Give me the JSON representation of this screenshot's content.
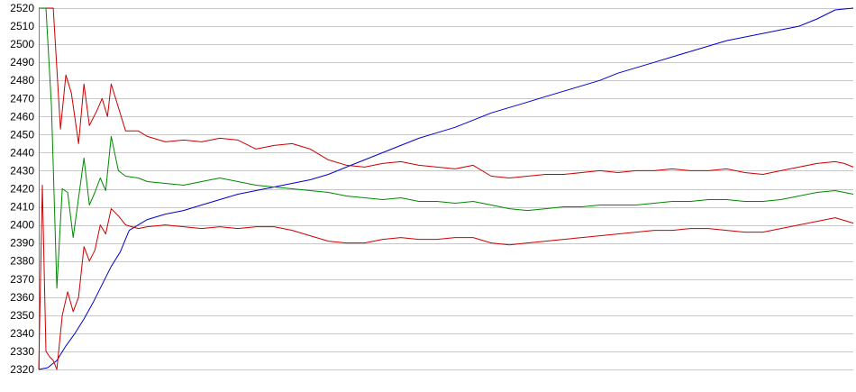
{
  "chart_data": {
    "type": "line",
    "title": "",
    "xlabel": "",
    "ylabel": "",
    "ylim": [
      2320,
      2520
    ],
    "xlim": [
      0,
      450
    ],
    "yticks": [
      2320,
      2330,
      2340,
      2350,
      2360,
      2370,
      2380,
      2390,
      2400,
      2410,
      2420,
      2430,
      2440,
      2450,
      2460,
      2470,
      2480,
      2490,
      2500,
      2510,
      2520
    ],
    "grid": true,
    "legend": "none",
    "series": [
      {
        "color": "#0000cc",
        "points": [
          [
            0,
            2320
          ],
          [
            5,
            2321
          ],
          [
            10,
            2325
          ],
          [
            15,
            2333
          ],
          [
            20,
            2340
          ],
          [
            25,
            2348
          ],
          [
            30,
            2357
          ],
          [
            35,
            2367
          ],
          [
            40,
            2377
          ],
          [
            45,
            2385
          ],
          [
            50,
            2397
          ],
          [
            55,
            2400
          ],
          [
            60,
            2403
          ],
          [
            70,
            2406
          ],
          [
            80,
            2408
          ],
          [
            90,
            2411
          ],
          [
            100,
            2414
          ],
          [
            110,
            2417
          ],
          [
            120,
            2419
          ],
          [
            130,
            2421
          ],
          [
            140,
            2423
          ],
          [
            150,
            2425
          ],
          [
            160,
            2428
          ],
          [
            170,
            2432
          ],
          [
            180,
            2436
          ],
          [
            190,
            2440
          ],
          [
            200,
            2444
          ],
          [
            210,
            2448
          ],
          [
            220,
            2451
          ],
          [
            230,
            2454
          ],
          [
            240,
            2458
          ],
          [
            250,
            2462
          ],
          [
            260,
            2465
          ],
          [
            270,
            2468
          ],
          [
            280,
            2471
          ],
          [
            290,
            2474
          ],
          [
            300,
            2477
          ],
          [
            310,
            2480
          ],
          [
            320,
            2484
          ],
          [
            330,
            2487
          ],
          [
            340,
            2490
          ],
          [
            350,
            2493
          ],
          [
            360,
            2496
          ],
          [
            370,
            2499
          ],
          [
            380,
            2502
          ],
          [
            390,
            2504
          ],
          [
            400,
            2506
          ],
          [
            410,
            2508
          ],
          [
            420,
            2510
          ],
          [
            430,
            2514
          ],
          [
            440,
            2519
          ],
          [
            450,
            2520
          ]
        ]
      },
      {
        "color": "#cc0000",
        "points": [
          [
            0,
            2520
          ],
          [
            5,
            2520
          ],
          [
            8,
            2520
          ],
          [
            12,
            2453
          ],
          [
            15,
            2483
          ],
          [
            18,
            2473
          ],
          [
            22,
            2445
          ],
          [
            25,
            2478
          ],
          [
            28,
            2455
          ],
          [
            32,
            2463
          ],
          [
            35,
            2470
          ],
          [
            38,
            2460
          ],
          [
            40,
            2478
          ],
          [
            44,
            2465
          ],
          [
            48,
            2452
          ],
          [
            55,
            2452
          ],
          [
            60,
            2449
          ],
          [
            70,
            2446
          ],
          [
            80,
            2447
          ],
          [
            90,
            2446
          ],
          [
            100,
            2448
          ],
          [
            110,
            2447
          ],
          [
            120,
            2442
          ],
          [
            130,
            2444
          ],
          [
            140,
            2445
          ],
          [
            150,
            2442
          ],
          [
            160,
            2436
          ],
          [
            170,
            2433
          ],
          [
            180,
            2432
          ],
          [
            190,
            2434
          ],
          [
            200,
            2435
          ],
          [
            210,
            2433
          ],
          [
            220,
            2432
          ],
          [
            230,
            2431
          ],
          [
            240,
            2433
          ],
          [
            250,
            2427
          ],
          [
            260,
            2426
          ],
          [
            270,
            2427
          ],
          [
            280,
            2428
          ],
          [
            290,
            2428
          ],
          [
            300,
            2429
          ],
          [
            310,
            2430
          ],
          [
            320,
            2429
          ],
          [
            330,
            2430
          ],
          [
            340,
            2430
          ],
          [
            350,
            2431
          ],
          [
            360,
            2430
          ],
          [
            370,
            2430
          ],
          [
            380,
            2431
          ],
          [
            390,
            2429
          ],
          [
            400,
            2428
          ],
          [
            410,
            2430
          ],
          [
            420,
            2432
          ],
          [
            430,
            2434
          ],
          [
            440,
            2435
          ],
          [
            445,
            2434
          ],
          [
            450,
            2432
          ]
        ]
      },
      {
        "color": "#008800",
        "points": [
          [
            0,
            2520
          ],
          [
            4,
            2520
          ],
          [
            7,
            2466
          ],
          [
            10,
            2365
          ],
          [
            13,
            2420
          ],
          [
            16,
            2418
          ],
          [
            19,
            2393
          ],
          [
            22,
            2415
          ],
          [
            25,
            2437
          ],
          [
            28,
            2411
          ],
          [
            31,
            2418
          ],
          [
            34,
            2426
          ],
          [
            37,
            2419
          ],
          [
            40,
            2449
          ],
          [
            44,
            2430
          ],
          [
            48,
            2427
          ],
          [
            55,
            2426
          ],
          [
            60,
            2424
          ],
          [
            70,
            2423
          ],
          [
            80,
            2422
          ],
          [
            90,
            2424
          ],
          [
            100,
            2426
          ],
          [
            110,
            2424
          ],
          [
            120,
            2422
          ],
          [
            130,
            2421
          ],
          [
            140,
            2420
          ],
          [
            150,
            2419
          ],
          [
            160,
            2418
          ],
          [
            170,
            2416
          ],
          [
            180,
            2415
          ],
          [
            190,
            2414
          ],
          [
            200,
            2415
          ],
          [
            210,
            2413
          ],
          [
            220,
            2413
          ],
          [
            230,
            2412
          ],
          [
            240,
            2413
          ],
          [
            250,
            2411
          ],
          [
            260,
            2409
          ],
          [
            270,
            2408
          ],
          [
            280,
            2409
          ],
          [
            290,
            2410
          ],
          [
            300,
            2410
          ],
          [
            310,
            2411
          ],
          [
            320,
            2411
          ],
          [
            330,
            2411
          ],
          [
            340,
            2412
          ],
          [
            350,
            2413
          ],
          [
            360,
            2413
          ],
          [
            370,
            2414
          ],
          [
            380,
            2414
          ],
          [
            390,
            2413
          ],
          [
            400,
            2413
          ],
          [
            410,
            2414
          ],
          [
            420,
            2416
          ],
          [
            430,
            2418
          ],
          [
            440,
            2419
          ],
          [
            450,
            2417
          ]
        ]
      },
      {
        "color": "#cc0000",
        "points": [
          [
            0,
            2320
          ],
          [
            2,
            2422
          ],
          [
            4,
            2330
          ],
          [
            6,
            2327
          ],
          [
            8,
            2325
          ],
          [
            10,
            2320
          ],
          [
            13,
            2350
          ],
          [
            16,
            2363
          ],
          [
            19,
            2352
          ],
          [
            22,
            2360
          ],
          [
            25,
            2388
          ],
          [
            28,
            2380
          ],
          [
            31,
            2386
          ],
          [
            34,
            2400
          ],
          [
            37,
            2395
          ],
          [
            40,
            2409
          ],
          [
            44,
            2405
          ],
          [
            48,
            2400
          ],
          [
            55,
            2398
          ],
          [
            60,
            2399
          ],
          [
            70,
            2400
          ],
          [
            80,
            2399
          ],
          [
            90,
            2398
          ],
          [
            100,
            2399
          ],
          [
            110,
            2398
          ],
          [
            120,
            2399
          ],
          [
            130,
            2399
          ],
          [
            140,
            2397
          ],
          [
            150,
            2394
          ],
          [
            160,
            2391
          ],
          [
            170,
            2390
          ],
          [
            180,
            2390
          ],
          [
            190,
            2392
          ],
          [
            200,
            2393
          ],
          [
            210,
            2392
          ],
          [
            220,
            2392
          ],
          [
            230,
            2393
          ],
          [
            240,
            2393
          ],
          [
            250,
            2390
          ],
          [
            260,
            2389
          ],
          [
            270,
            2390
          ],
          [
            280,
            2391
          ],
          [
            290,
            2392
          ],
          [
            300,
            2393
          ],
          [
            310,
            2394
          ],
          [
            320,
            2395
          ],
          [
            330,
            2396
          ],
          [
            340,
            2397
          ],
          [
            350,
            2397
          ],
          [
            360,
            2398
          ],
          [
            370,
            2398
          ],
          [
            380,
            2397
          ],
          [
            390,
            2396
          ],
          [
            400,
            2396
          ],
          [
            410,
            2398
          ],
          [
            420,
            2400
          ],
          [
            430,
            2402
          ],
          [
            440,
            2404
          ],
          [
            450,
            2401
          ]
        ]
      }
    ]
  }
}
